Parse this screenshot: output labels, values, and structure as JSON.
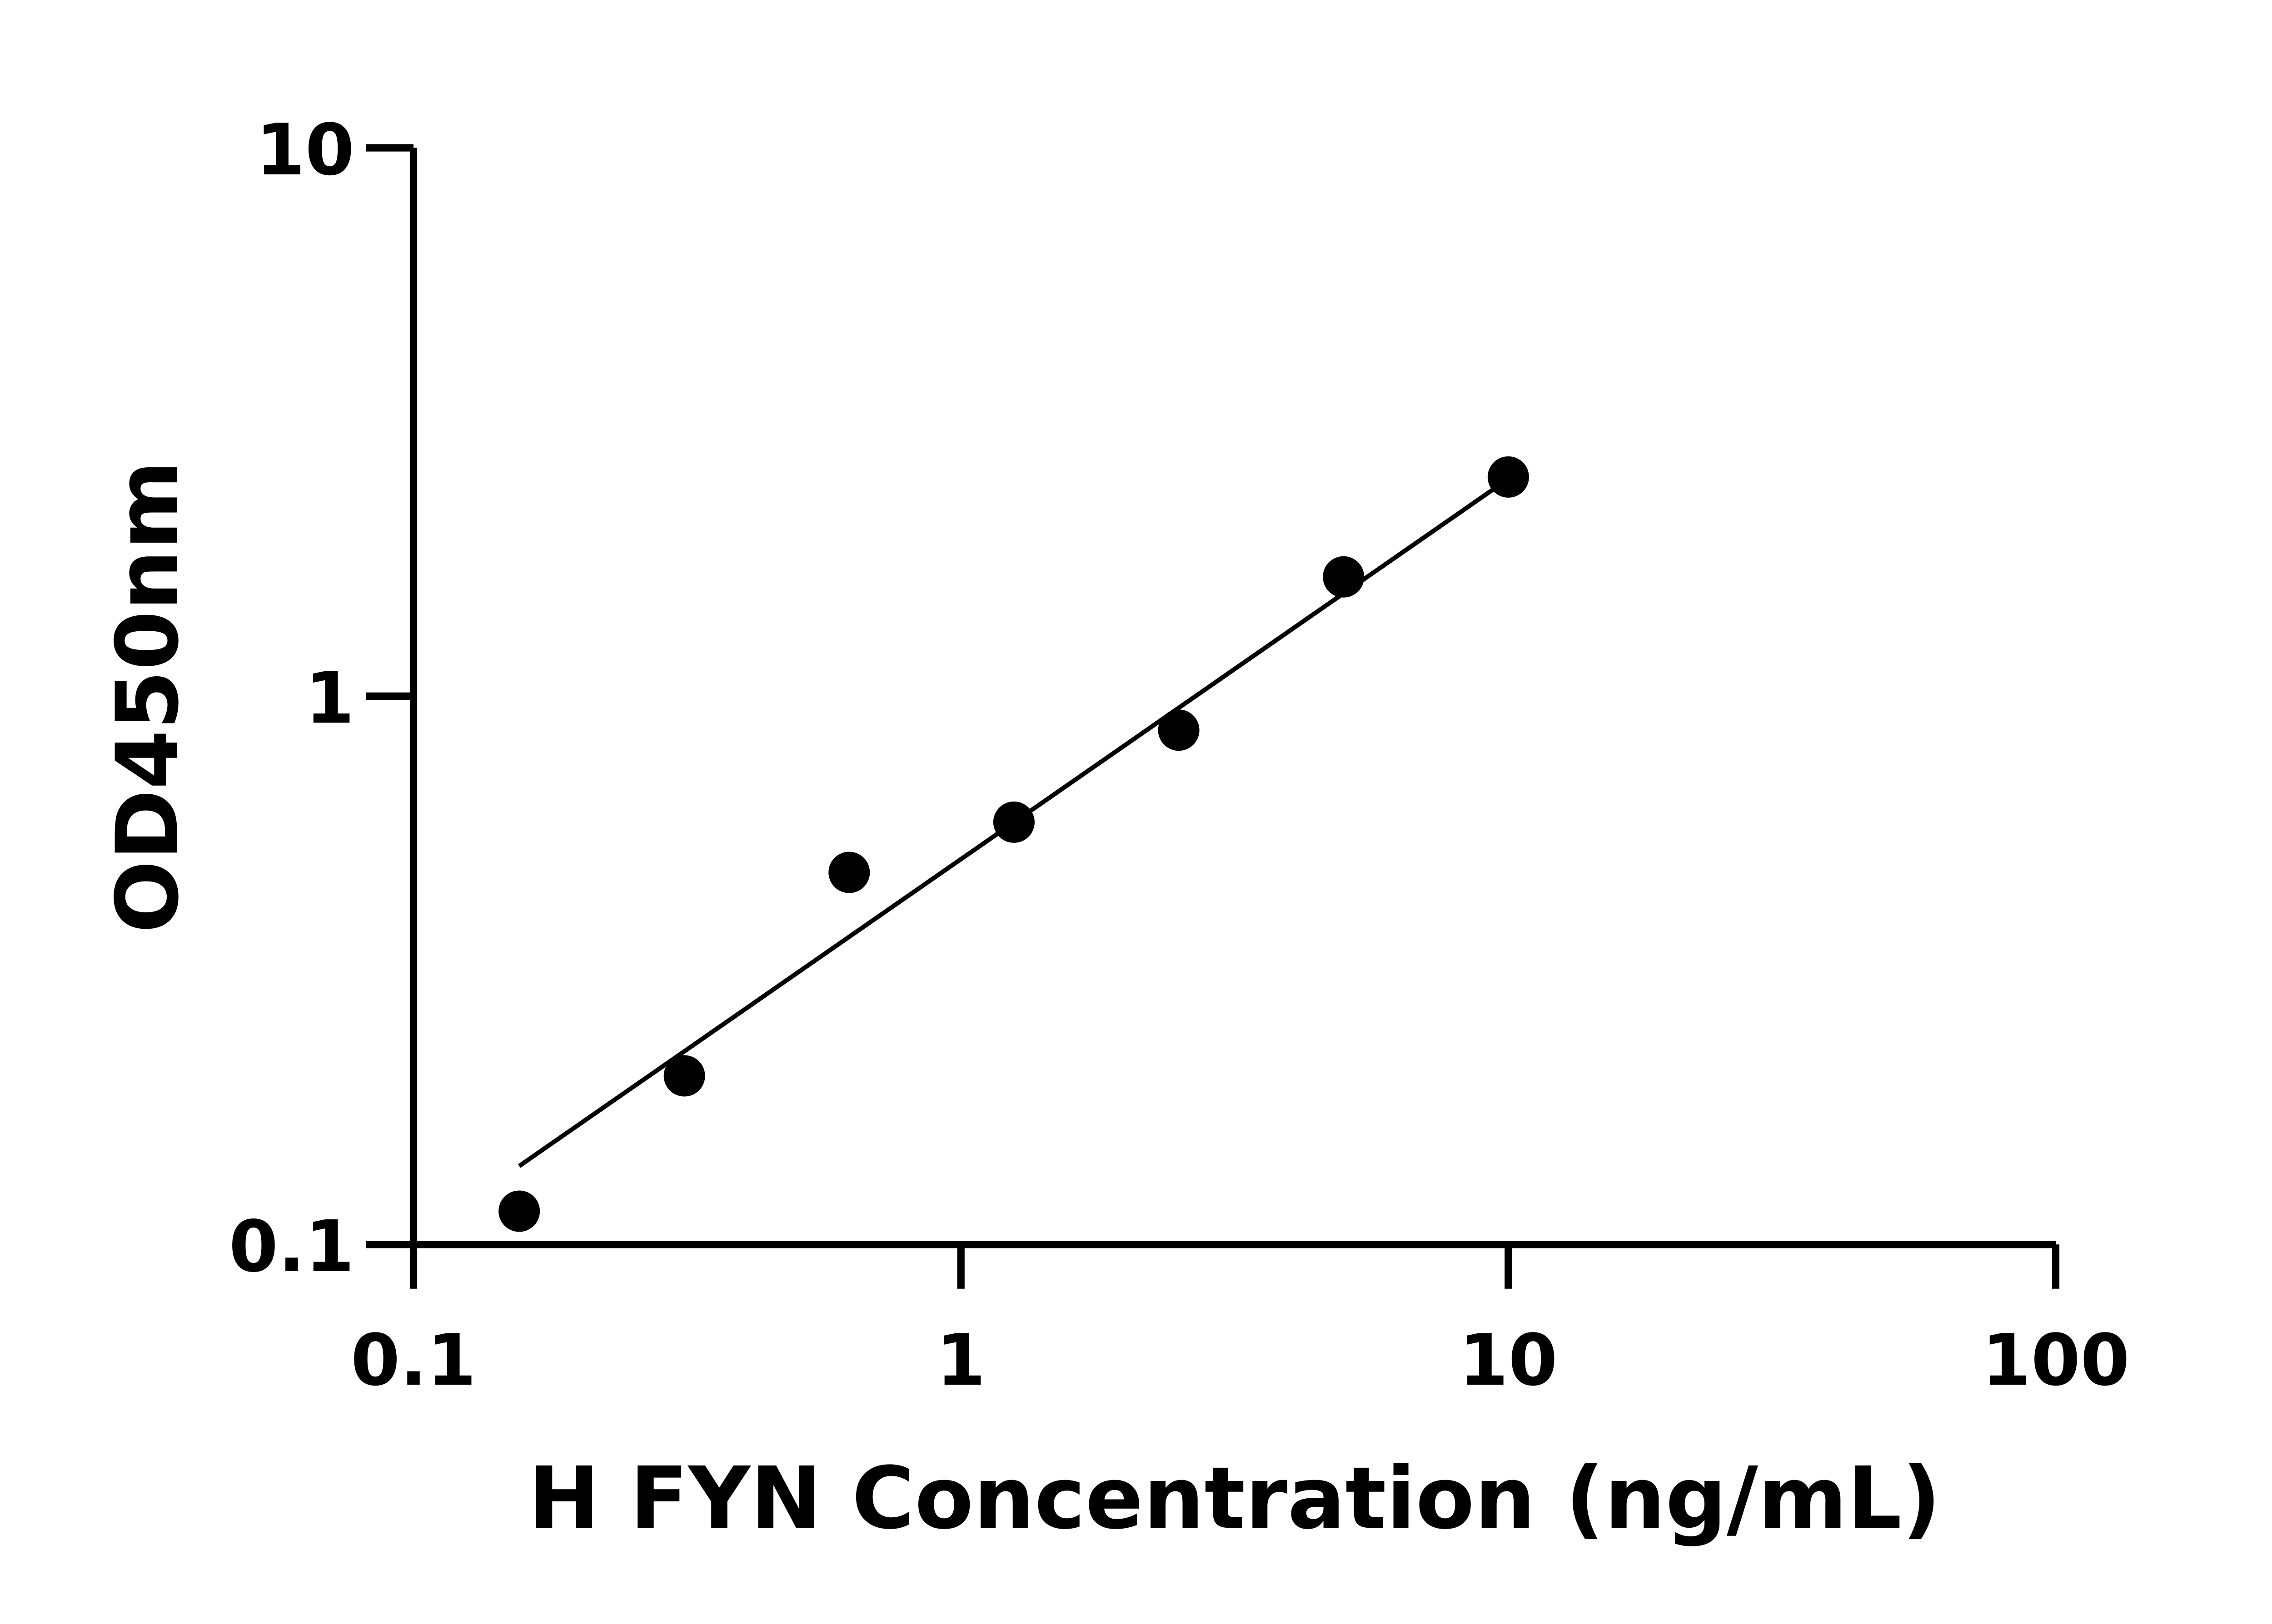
{
  "chart_data": {
    "type": "scatter",
    "title": "",
    "xlabel": "H FYN Concentration (ng/mL)",
    "ylabel": "OD450nm",
    "x_scale": "log",
    "y_scale": "log",
    "xlim": [
      0.1,
      100
    ],
    "ylim": [
      0.1,
      10
    ],
    "x_ticks": [
      "0.1",
      "1",
      "10",
      "100"
    ],
    "y_ticks": [
      "0.1",
      "1",
      "10"
    ],
    "grid": false,
    "legend": "none",
    "series": [
      {
        "x": [
          0.156,
          0.3125,
          0.625,
          1.25,
          2.5,
          5,
          10
        ],
        "y": [
          0.115,
          0.203,
          0.477,
          0.589,
          0.867,
          1.65,
          2.51
        ],
        "marker": "circle",
        "color": "#000000"
      }
    ],
    "fit_line": {
      "x": [
        0.156,
        10
      ],
      "y": [
        0.139,
        2.49
      ],
      "color": "#000000"
    }
  }
}
